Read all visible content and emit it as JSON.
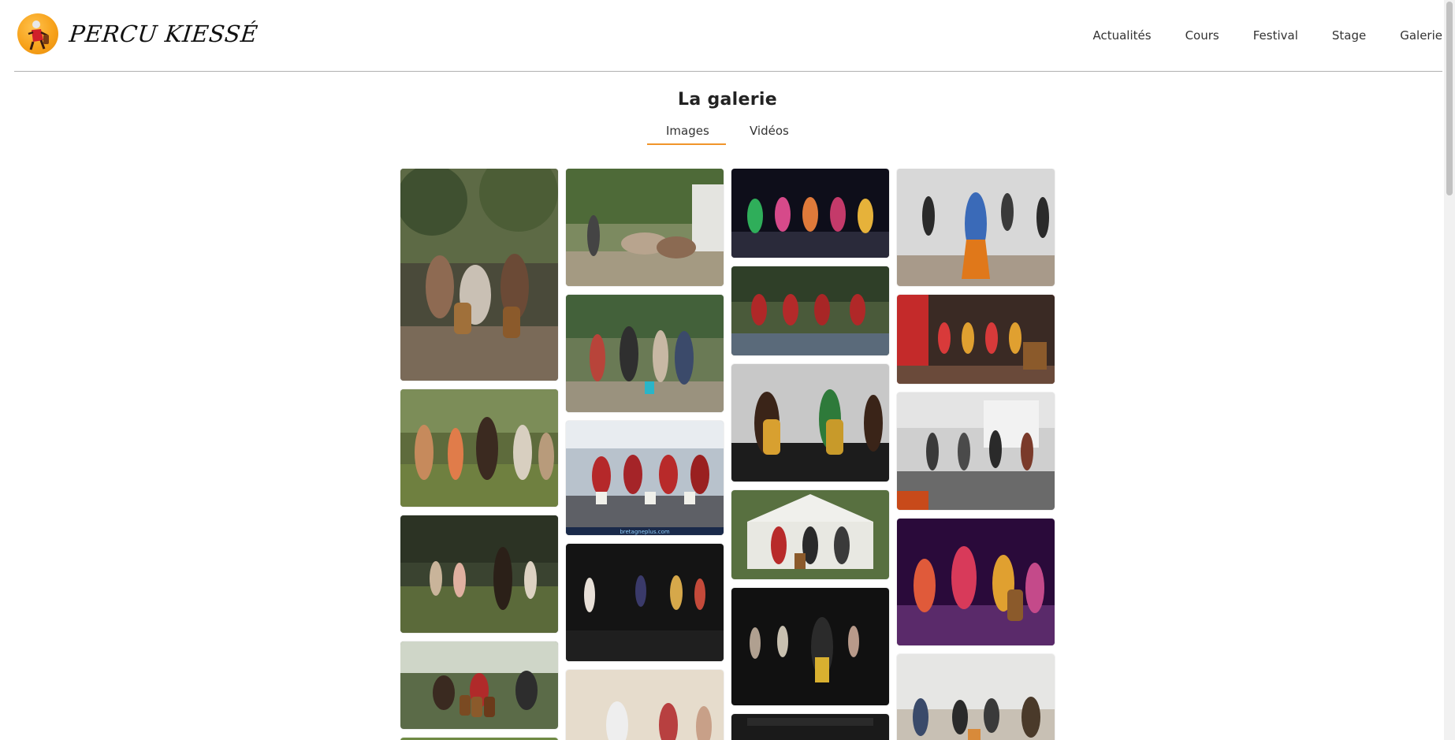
{
  "brand": {
    "name": "PERCU KIESSÉ",
    "logo_icon": "drummer-logo-icon",
    "accent": "#f7a21b"
  },
  "nav": {
    "items": [
      "Actualités",
      "Cours",
      "Festival",
      "Stage",
      "Galerie"
    ]
  },
  "gallery": {
    "title": "La galerie",
    "tabs": [
      {
        "label": "Images",
        "active": true
      },
      {
        "label": "Vidéos",
        "active": false
      }
    ],
    "underline_color": "#f0952a",
    "photo_caption_watermark": "bretagneplus.com"
  }
}
